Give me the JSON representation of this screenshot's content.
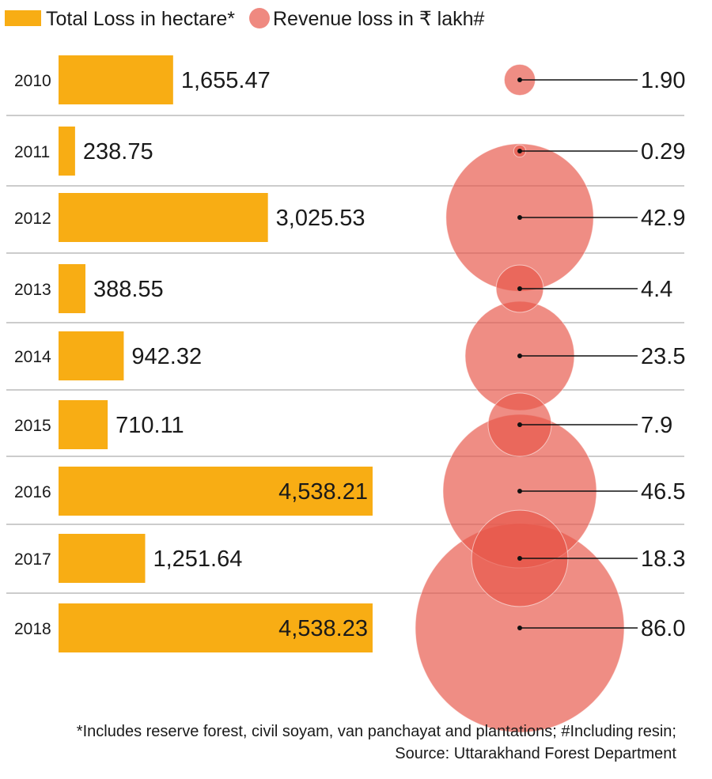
{
  "chart_data": {
    "type": "bar+bubble",
    "categories": [
      "2010",
      "2011",
      "2012",
      "2013",
      "2014",
      "2015",
      "2016",
      "2017",
      "2018"
    ],
    "series": [
      {
        "name": "Total Loss in hectare*",
        "type": "bar",
        "color": "#f8ad14",
        "values": [
          1655.47,
          238.75,
          3025.53,
          388.55,
          942.32,
          710.11,
          4538.21,
          1251.64,
          4538.23
        ],
        "labels": [
          "1,655.47",
          "238.75",
          "3,025.53",
          "388.55",
          "942.32",
          "710.11",
          "4,538.21",
          "1,251.64",
          "4,538.23"
        ]
      },
      {
        "name": "Revenue loss in ₹ lakh#",
        "type": "bubble",
        "color": "#e8574a",
        "values": [
          1.9,
          0.29,
          42.9,
          4.4,
          23.5,
          7.9,
          46.5,
          18.3,
          86.0
        ],
        "labels": [
          "1.90",
          "0.29",
          "42.9",
          "4.4",
          "23.5",
          "7.9",
          "46.5",
          "18.3",
          "86.0"
        ]
      }
    ],
    "footnote_line1": "*Includes reserve forest, civil soyam, van panchayat and plantations; #Including resin;",
    "footnote_line2": "Source: Uttarakhand Forest Department"
  }
}
